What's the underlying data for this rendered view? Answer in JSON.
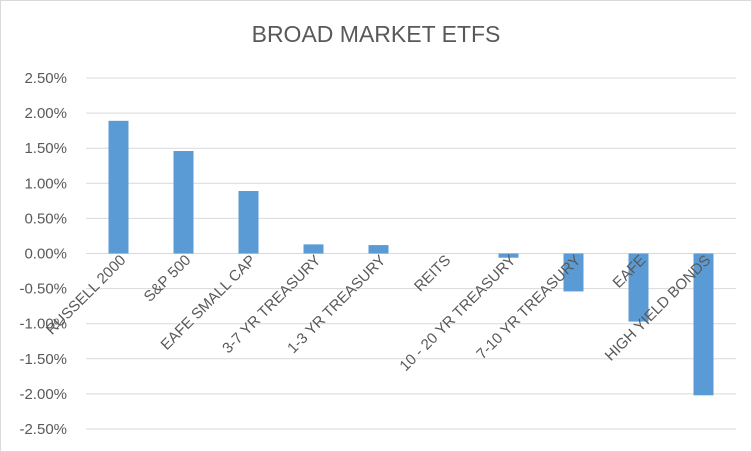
{
  "chart_data": {
    "type": "bar",
    "title": "BROAD MARKET ETFS",
    "categories": [
      "RUSSELL 2000",
      "S&P 500",
      "EAFE SMALL CAP",
      "3-7 YR TREASURY",
      "1-3 YR TREASURY",
      "REITS",
      "10 - 20 YR TREASURY",
      "7-10 YR TREASURY",
      "EAFE",
      "HIGH YIELD BONDS"
    ],
    "values": [
      1.89,
      1.46,
      0.89,
      0.13,
      0.12,
      0.0,
      -0.06,
      -0.54,
      -0.97,
      -2.02
    ],
    "y_ticks": [
      "2.50%",
      "2.00%",
      "1.50%",
      "1.00%",
      "0.50%",
      "0.00%",
      "-0.50%",
      "-1.00%",
      "-1.50%",
      "-2.00%",
      "-2.50%"
    ],
    "ylim": [
      -2.5,
      2.5
    ],
    "xlabel": "",
    "ylabel": "",
    "grid": true,
    "legend": false,
    "bar_color": "#5b9bd5",
    "grid_color": "#d9d9d9"
  }
}
